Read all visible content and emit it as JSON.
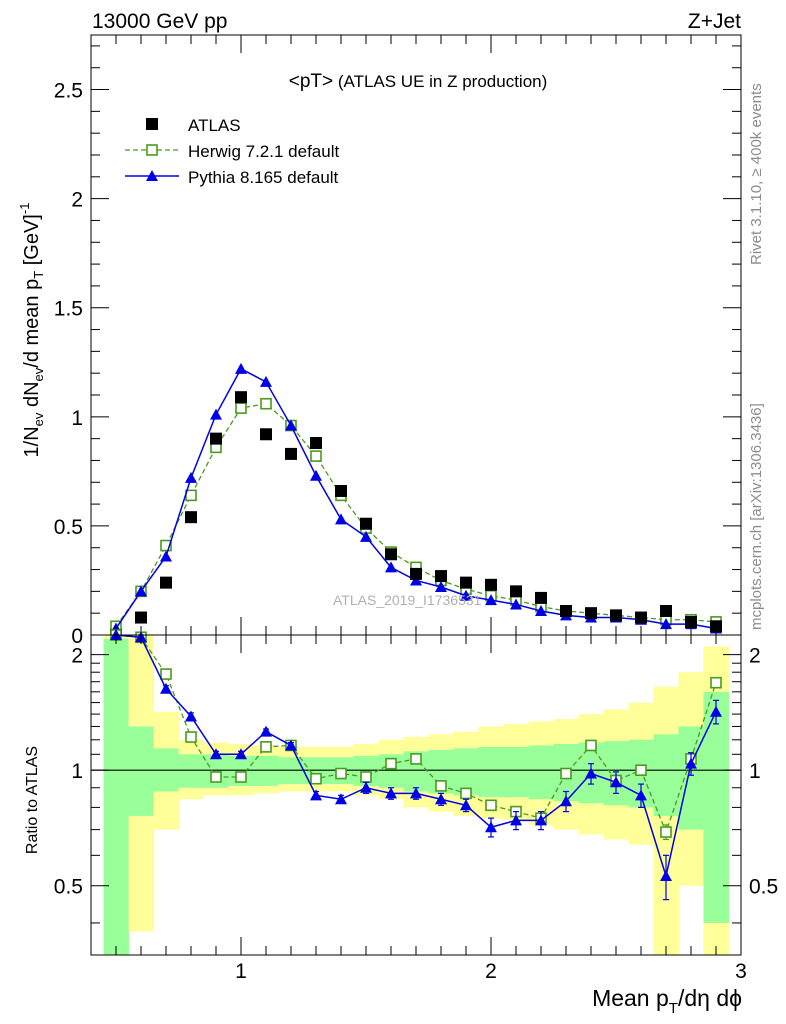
{
  "header": {
    "energy": "13000 GeV pp",
    "process": "Z+Jet"
  },
  "side_labels": {
    "rivet": "Rivet 3.1.10, ≥ 400k events",
    "mcplots": "mcplots.cern.ch [arXiv:1306.3436]"
  },
  "watermark": "ATLAS_2019_I1736531",
  "colors": {
    "data": "#000000",
    "herwig": "#4a9a1e",
    "pythia": "#0000e6",
    "band_inner": "#99ff99",
    "band_outer": "#ffff99"
  },
  "chart_data": [
    {
      "type": "scatter",
      "panel": "main",
      "title_main": "<pT>",
      "title_sub": " (ATLAS UE in Z production)",
      "ylabel_parts": [
        "1/N",
        "ev",
        " dN",
        "ev",
        "/d mean p",
        "T",
        " [GeV]",
        "-1"
      ],
      "xlim": [
        0.4,
        3.0
      ],
      "ylim": [
        0,
        2.75
      ],
      "yticks": [
        0,
        0.5,
        1,
        1.5,
        2,
        2.5
      ],
      "ytick_labels": [
        "0",
        "0.5",
        "1",
        "1.5",
        "2",
        "2.5"
      ],
      "legend_position": "upper-left",
      "x": [
        0.5,
        0.6,
        0.7,
        0.8,
        0.9,
        1.0,
        1.1,
        1.2,
        1.3,
        1.4,
        1.5,
        1.6,
        1.7,
        1.8,
        1.9,
        2.0,
        2.1,
        2.2,
        2.3,
        2.4,
        2.5,
        2.6,
        2.7,
        2.8,
        2.9
      ],
      "series": [
        {
          "name": "ATLAS",
          "style": "data",
          "values": [
            0.0,
            0.08,
            0.24,
            0.54,
            0.9,
            1.09,
            0.92,
            0.83,
            0.88,
            0.66,
            0.51,
            0.37,
            0.28,
            0.27,
            0.24,
            0.23,
            0.2,
            0.17,
            0.11,
            0.1,
            0.09,
            0.08,
            0.11,
            0.06,
            0.04
          ]
        },
        {
          "name": "Herwig 7.2.1 default",
          "style": "herwig",
          "values": [
            0.04,
            0.2,
            0.41,
            0.64,
            0.86,
            1.04,
            1.06,
            0.96,
            0.82,
            0.64,
            0.49,
            0.38,
            0.31,
            0.25,
            0.21,
            0.18,
            0.16,
            0.13,
            0.11,
            0.1,
            0.09,
            0.08,
            0.07,
            0.07,
            0.06
          ]
        },
        {
          "name": "Pythia 8.165 default",
          "style": "pythia",
          "values": [
            0.03,
            0.2,
            0.36,
            0.72,
            1.01,
            1.22,
            1.16,
            0.96,
            0.73,
            0.53,
            0.45,
            0.31,
            0.25,
            0.22,
            0.18,
            0.16,
            0.14,
            0.11,
            0.09,
            0.08,
            0.08,
            0.07,
            0.05,
            0.05,
            0.03
          ]
        }
      ]
    },
    {
      "type": "line",
      "panel": "ratio",
      "ylabel": "Ratio to ATLAS",
      "xlabel_parts": [
        "Mean p",
        "T",
        "/dη dϕ"
      ],
      "xlim": [
        0.4,
        3.0
      ],
      "ylim": [
        0.33,
        2.25
      ],
      "yticks": [
        0.5,
        1,
        2
      ],
      "ytick_labels": [
        "0.5",
        "1",
        "2"
      ],
      "xticks": [
        1,
        2,
        3
      ],
      "xtick_labels": [
        "1",
        "2",
        "3"
      ],
      "x": [
        0.5,
        0.6,
        0.7,
        0.8,
        0.9,
        1.0,
        1.1,
        1.2,
        1.3,
        1.4,
        1.5,
        1.6,
        1.7,
        1.8,
        1.9,
        2.0,
        2.1,
        2.2,
        2.3,
        2.4,
        2.5,
        2.6,
        2.7,
        2.8,
        2.9
      ],
      "bin_edges": [
        0.45,
        0.55,
        0.65,
        0.75,
        0.85,
        0.95,
        1.05,
        1.15,
        1.25,
        1.35,
        1.45,
        1.55,
        1.65,
        1.75,
        1.85,
        1.95,
        2.05,
        2.15,
        2.25,
        2.35,
        2.45,
        2.55,
        2.65,
        2.75,
        2.85,
        2.95
      ],
      "band_inner_low": [
        0.33,
        0.76,
        0.88,
        0.9,
        0.9,
        0.91,
        0.91,
        0.92,
        0.92,
        0.92,
        0.91,
        0.9,
        0.88,
        0.87,
        0.86,
        0.85,
        0.85,
        0.84,
        0.83,
        0.82,
        0.81,
        0.8,
        0.76,
        0.7,
        0.4
      ],
      "band_inner_high": [
        2.2,
        1.3,
        1.14,
        1.1,
        1.1,
        1.09,
        1.09,
        1.08,
        1.08,
        1.08,
        1.09,
        1.1,
        1.12,
        1.13,
        1.14,
        1.15,
        1.15,
        1.16,
        1.17,
        1.18,
        1.19,
        1.2,
        1.24,
        1.3,
        1.6
      ],
      "band_outer_low": [
        0.33,
        0.38,
        0.7,
        0.84,
        0.86,
        0.86,
        0.87,
        0.88,
        0.88,
        0.88,
        0.86,
        0.84,
        0.8,
        0.78,
        0.76,
        0.75,
        0.74,
        0.72,
        0.7,
        0.68,
        0.66,
        0.64,
        0.33,
        0.5,
        0.33
      ],
      "band_outer_high": [
        2.25,
        2.25,
        1.42,
        1.2,
        1.18,
        1.17,
        1.16,
        1.15,
        1.15,
        1.15,
        1.17,
        1.2,
        1.22,
        1.24,
        1.26,
        1.3,
        1.32,
        1.34,
        1.36,
        1.4,
        1.44,
        1.5,
        1.65,
        1.8,
        2.1
      ],
      "series": [
        {
          "name": "Herwig 7.2.1 default",
          "style": "herwig",
          "values": [
            2.3,
            2.22,
            1.78,
            1.22,
            0.96,
            0.96,
            1.15,
            1.16,
            0.95,
            0.98,
            0.96,
            1.04,
            1.07,
            0.91,
            0.87,
            0.81,
            0.78,
            0.75,
            0.98,
            1.16,
            0.94,
            1.0,
            0.69,
            1.07,
            1.69
          ],
          "errors": [
            0.02,
            0.02,
            0.02,
            0.02,
            0.01,
            0.01,
            0.01,
            0.01,
            0.01,
            0.01,
            0.01,
            0.01,
            0.01,
            0.01,
            0.01,
            0.02,
            0.02,
            0.02,
            0.02,
            0.02,
            0.02,
            0.02,
            0.03,
            0.04,
            0.05
          ]
        },
        {
          "name": "Pythia 8.165 default",
          "style": "pythia",
          "values": [
            2.3,
            2.22,
            1.63,
            1.38,
            1.1,
            1.1,
            1.26,
            1.16,
            0.86,
            0.84,
            0.9,
            0.87,
            0.87,
            0.84,
            0.81,
            0.71,
            0.74,
            0.74,
            0.83,
            0.98,
            0.93,
            0.86,
            0.53,
            1.04,
            1.42
          ],
          "errors": [
            0.03,
            0.03,
            0.03,
            0.03,
            0.02,
            0.02,
            0.02,
            0.02,
            0.02,
            0.02,
            0.03,
            0.03,
            0.03,
            0.03,
            0.03,
            0.04,
            0.04,
            0.04,
            0.05,
            0.06,
            0.06,
            0.06,
            0.07,
            0.07,
            0.1
          ]
        }
      ]
    }
  ]
}
